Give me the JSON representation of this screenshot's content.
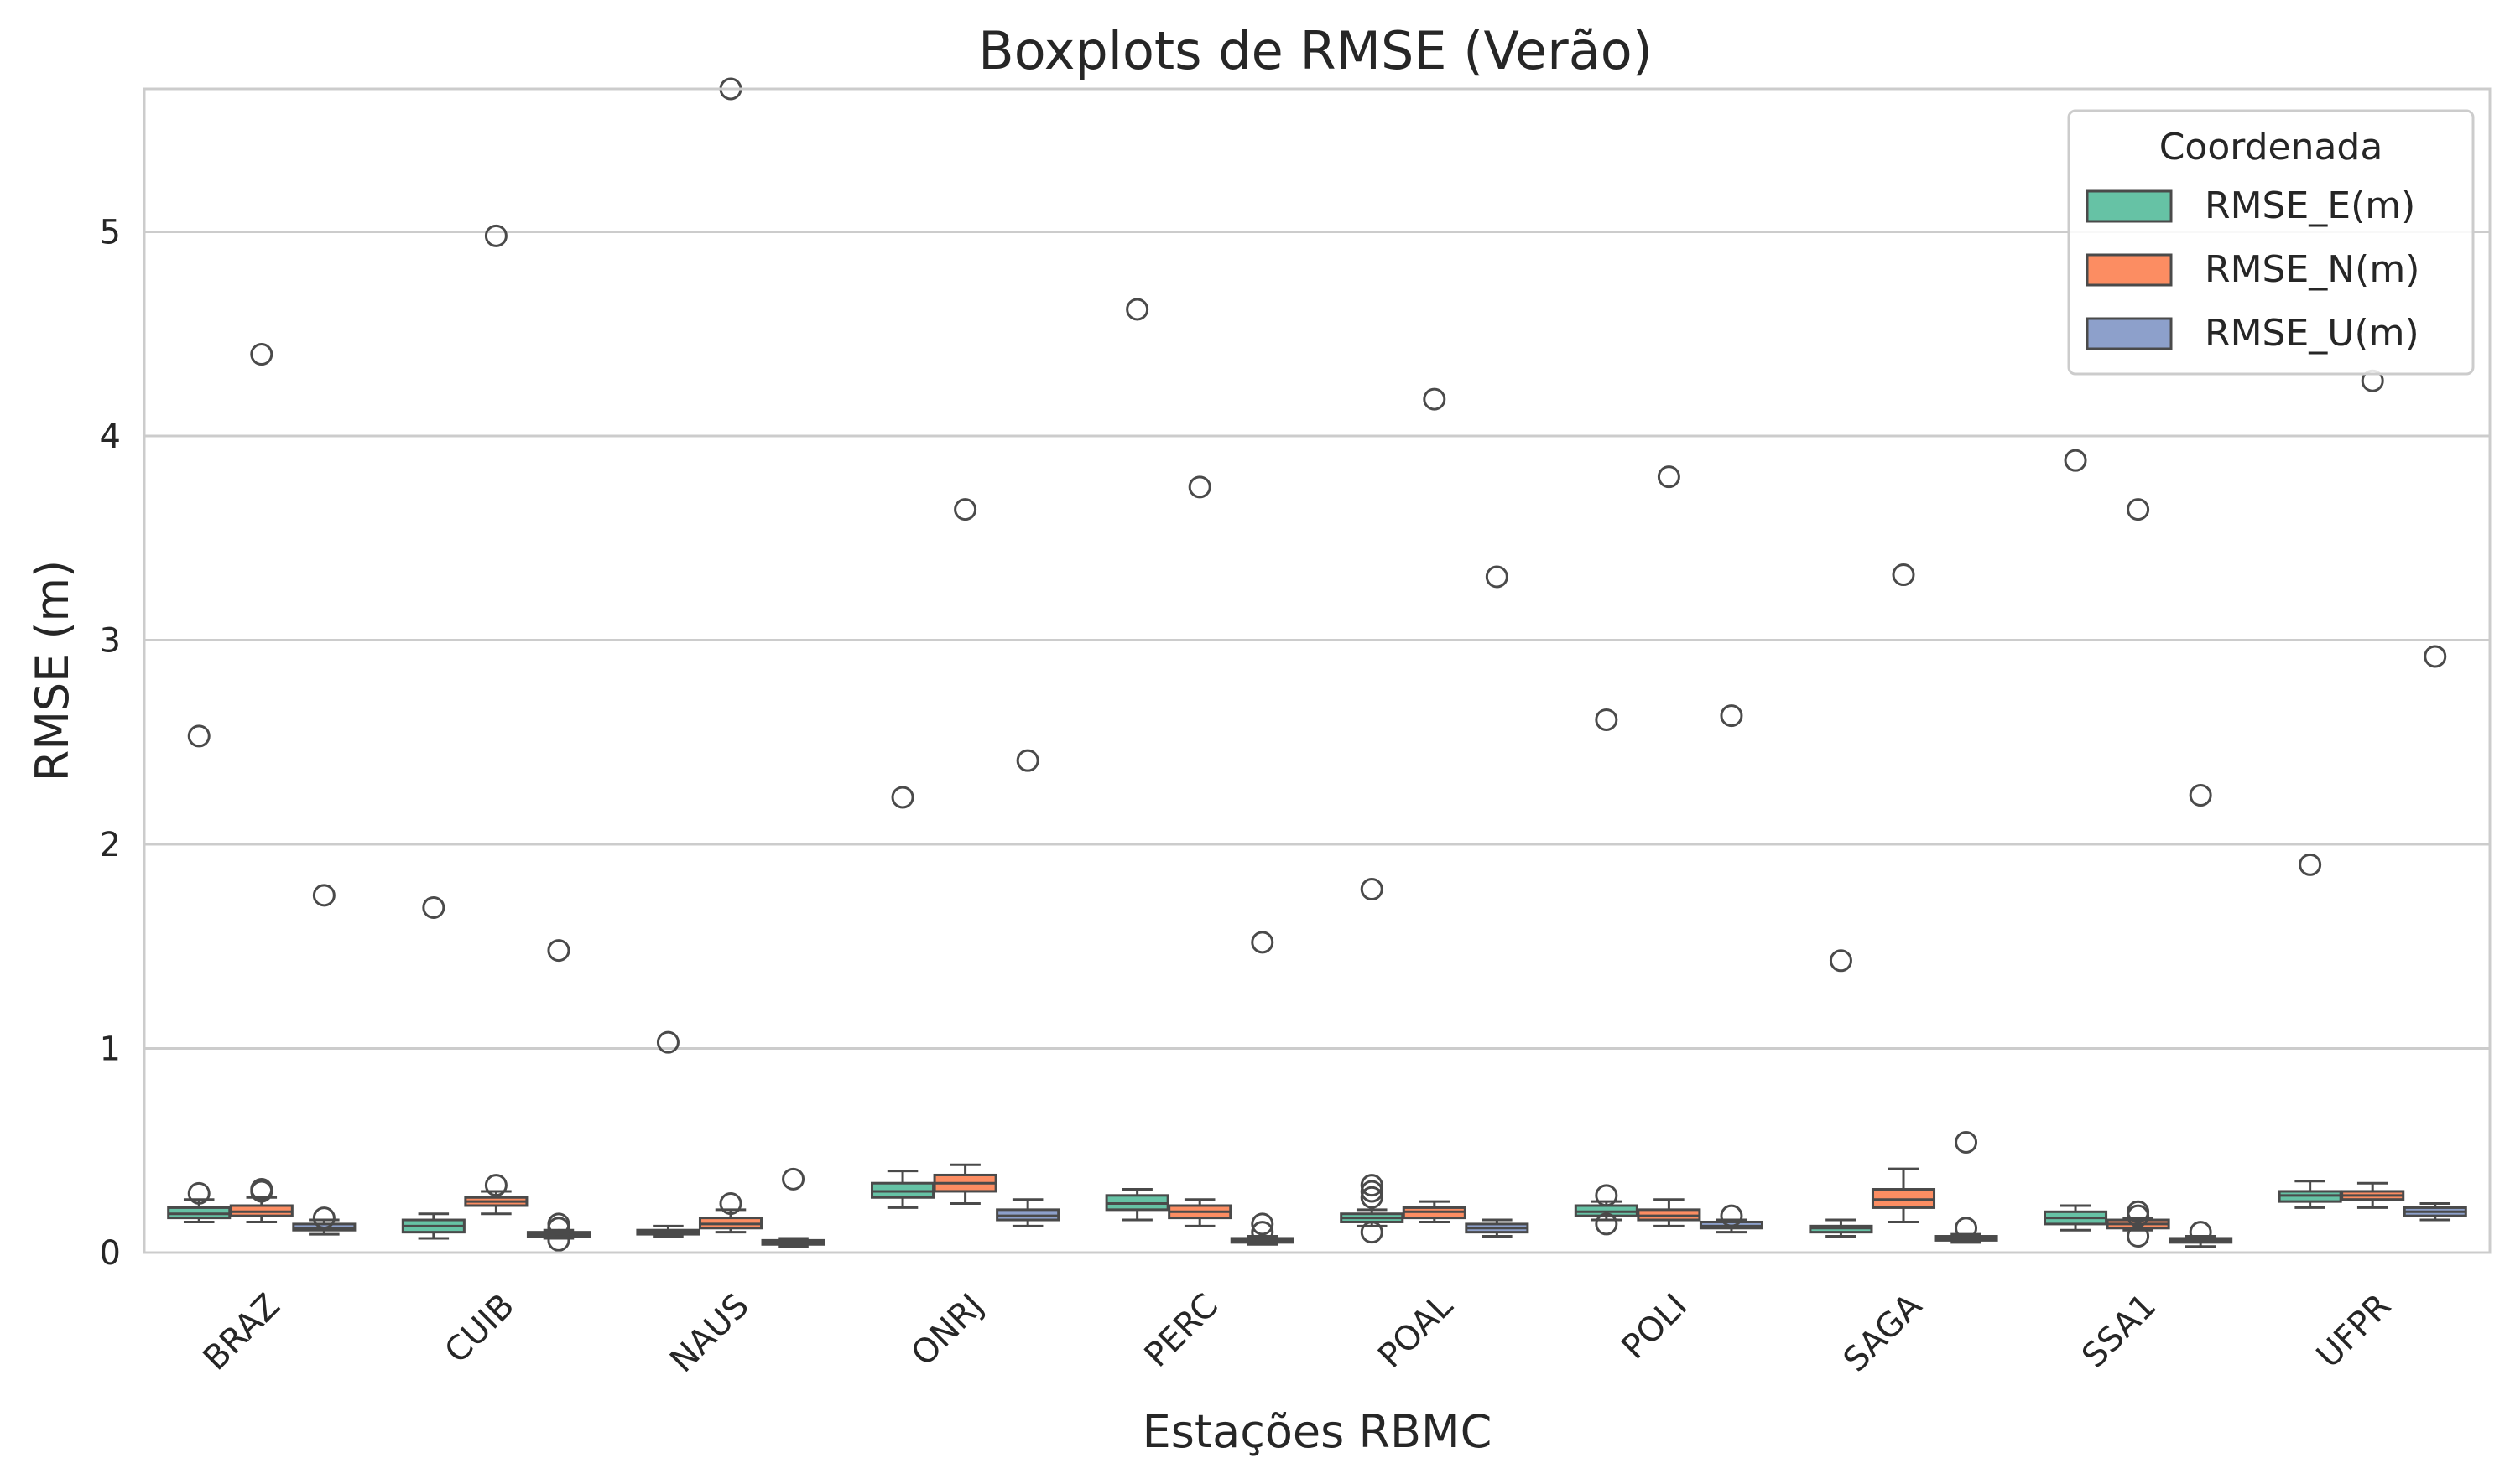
{
  "chart_data": {
    "type": "boxplot",
    "title": "Boxplots de RMSE (Verão)",
    "xlabel": "Estações RBMC",
    "ylabel": "RMSE (m)",
    "ylim": [
      0,
      5.7
    ],
    "yticks": [
      0,
      1,
      2,
      3,
      4,
      5
    ],
    "grid": "horizontal",
    "legend": {
      "title": "Coordenada",
      "placement": "top-right"
    },
    "categories": [
      "BRAZ",
      "CUIB",
      "NAUS",
      "ONRJ",
      "PERC",
      "POAL",
      "POLI",
      "SAGA",
      "SSA1",
      "UFPR"
    ],
    "series": [
      {
        "name": "RMSE_E(m)",
        "color": "#66c2a5",
        "boxes": [
          {
            "q1": 0.17,
            "median": 0.19,
            "q3": 0.22,
            "whislo": 0.15,
            "whishi": 0.26,
            "fliers": [
              2.53,
              0.29
            ]
          },
          {
            "q1": 0.1,
            "median": 0.13,
            "q3": 0.16,
            "whislo": 0.07,
            "whishi": 0.19,
            "fliers": [
              1.69
            ]
          },
          {
            "q1": 0.09,
            "median": 0.1,
            "q3": 0.11,
            "whislo": 0.08,
            "whishi": 0.13,
            "fliers": [
              1.03
            ]
          },
          {
            "q1": 0.27,
            "median": 0.3,
            "q3": 0.34,
            "whislo": 0.22,
            "whishi": 0.4,
            "fliers": [
              2.23
            ]
          },
          {
            "q1": 0.21,
            "median": 0.24,
            "q3": 0.28,
            "whislo": 0.16,
            "whishi": 0.31,
            "fliers": [
              4.62
            ]
          },
          {
            "q1": 0.15,
            "median": 0.17,
            "q3": 0.19,
            "whislo": 0.13,
            "whishi": 0.21,
            "fliers": [
              1.78,
              0.33,
              0.3,
              0.27,
              0.1
            ]
          },
          {
            "q1": 0.18,
            "median": 0.2,
            "q3": 0.23,
            "whislo": 0.16,
            "whishi": 0.25,
            "fliers": [
              2.61,
              0.28,
              0.14
            ]
          },
          {
            "q1": 0.1,
            "median": 0.12,
            "q3": 0.13,
            "whislo": 0.08,
            "whishi": 0.16,
            "fliers": [
              1.43
            ]
          },
          {
            "q1": 0.14,
            "median": 0.17,
            "q3": 0.2,
            "whislo": 0.11,
            "whishi": 0.23,
            "fliers": [
              3.88
            ]
          },
          {
            "q1": 0.25,
            "median": 0.28,
            "q3": 0.3,
            "whislo": 0.22,
            "whishi": 0.35,
            "fliers": [
              1.9
            ]
          }
        ]
      },
      {
        "name": "RMSE_N(m)",
        "color": "#fc8d62",
        "boxes": [
          {
            "q1": 0.18,
            "median": 0.2,
            "q3": 0.23,
            "whislo": 0.15,
            "whishi": 0.27,
            "fliers": [
              4.4,
              0.31,
              0.3
            ]
          },
          {
            "q1": 0.23,
            "median": 0.25,
            "q3": 0.27,
            "whislo": 0.19,
            "whishi": 0.3,
            "fliers": [
              4.98,
              0.33
            ]
          },
          {
            "q1": 0.12,
            "median": 0.14,
            "q3": 0.17,
            "whislo": 0.1,
            "whishi": 0.21,
            "fliers": [
              5.7,
              0.24
            ]
          },
          {
            "q1": 0.3,
            "median": 0.34,
            "q3": 0.38,
            "whislo": 0.24,
            "whishi": 0.43,
            "fliers": [
              3.64
            ]
          },
          {
            "q1": 0.17,
            "median": 0.2,
            "q3": 0.23,
            "whislo": 0.13,
            "whishi": 0.26,
            "fliers": [
              3.75
            ]
          },
          {
            "q1": 0.17,
            "median": 0.2,
            "q3": 0.22,
            "whislo": 0.15,
            "whishi": 0.25,
            "fliers": [
              4.18
            ]
          },
          {
            "q1": 0.16,
            "median": 0.18,
            "q3": 0.21,
            "whislo": 0.13,
            "whishi": 0.26,
            "fliers": [
              3.8
            ]
          },
          {
            "q1": 0.22,
            "median": 0.26,
            "q3": 0.31,
            "whislo": 0.15,
            "whishi": 0.41,
            "fliers": [
              3.32
            ]
          },
          {
            "q1": 0.12,
            "median": 0.14,
            "q3": 0.16,
            "whislo": 0.11,
            "whishi": 0.17,
            "fliers": [
              3.64,
              0.2,
              0.18,
              0.08
            ]
          },
          {
            "q1": 0.26,
            "median": 0.28,
            "q3": 0.3,
            "whislo": 0.22,
            "whishi": 0.34,
            "fliers": [
              4.27
            ]
          }
        ]
      },
      {
        "name": "RMSE_U(m)",
        "color": "#8da0cb",
        "boxes": [
          {
            "q1": 0.11,
            "median": 0.12,
            "q3": 0.14,
            "whislo": 0.09,
            "whishi": 0.16,
            "fliers": [
              1.75,
              0.17
            ]
          },
          {
            "q1": 0.08,
            "median": 0.09,
            "q3": 0.1,
            "whislo": 0.07,
            "whishi": 0.11,
            "fliers": [
              1.48,
              0.14,
              0.12,
              0.06
            ]
          },
          {
            "q1": 0.04,
            "median": 0.05,
            "q3": 0.06,
            "whislo": 0.03,
            "whishi": 0.07,
            "fliers": [
              0.36
            ]
          },
          {
            "q1": 0.16,
            "median": 0.18,
            "q3": 0.21,
            "whislo": 0.13,
            "whishi": 0.26,
            "fliers": [
              2.41
            ]
          },
          {
            "q1": 0.05,
            "median": 0.06,
            "q3": 0.07,
            "whislo": 0.04,
            "whishi": 0.08,
            "fliers": [
              1.52,
              0.14,
              0.1
            ]
          },
          {
            "q1": 0.1,
            "median": 0.12,
            "q3": 0.14,
            "whislo": 0.08,
            "whishi": 0.16,
            "fliers": [
              3.31
            ]
          },
          {
            "q1": 0.12,
            "median": 0.13,
            "q3": 0.15,
            "whislo": 0.1,
            "whishi": 0.16,
            "fliers": [
              2.63,
              0.18
            ]
          },
          {
            "q1": 0.06,
            "median": 0.07,
            "q3": 0.08,
            "whislo": 0.05,
            "whishi": 0.09,
            "fliers": [
              0.54,
              0.12
            ]
          },
          {
            "q1": 0.05,
            "median": 0.06,
            "q3": 0.07,
            "whislo": 0.03,
            "whishi": 0.08,
            "fliers": [
              2.24,
              0.1
            ]
          },
          {
            "q1": 0.18,
            "median": 0.2,
            "q3": 0.22,
            "whislo": 0.16,
            "whishi": 0.24,
            "fliers": [
              2.92
            ]
          }
        ]
      }
    ]
  }
}
